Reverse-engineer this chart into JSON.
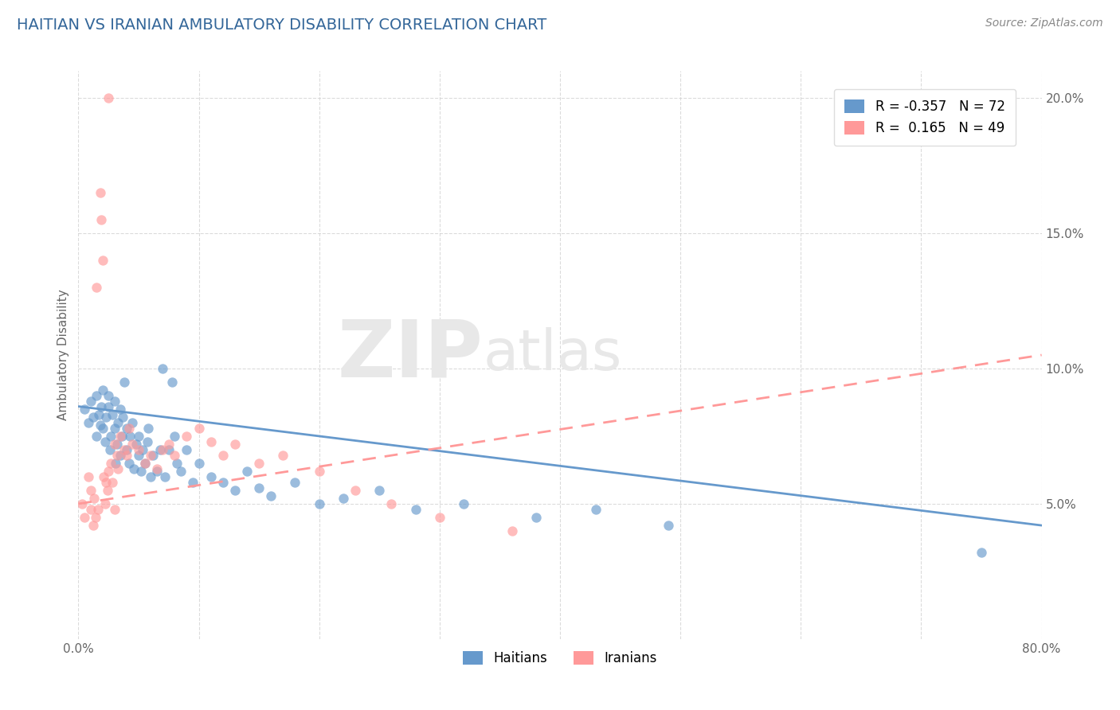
{
  "title": "HAITIAN VS IRANIAN AMBULATORY DISABILITY CORRELATION CHART",
  "source": "Source: ZipAtlas.com",
  "ylabel": "Ambulatory Disability",
  "x_min": 0.0,
  "x_max": 0.8,
  "y_min": 0.0,
  "y_max": 0.21,
  "x_ticks": [
    0.0,
    0.1,
    0.2,
    0.3,
    0.4,
    0.5,
    0.6,
    0.7,
    0.8
  ],
  "x_tick_labels": [
    "0.0%",
    "",
    "",
    "",
    "",
    "",
    "",
    "",
    "80.0%"
  ],
  "y_ticks": [
    0.05,
    0.1,
    0.15,
    0.2
  ],
  "y_tick_labels": [
    "5.0%",
    "10.0%",
    "15.0%",
    "20.0%"
  ],
  "haitian_color": "#6699CC",
  "iranian_color": "#FF9999",
  "haitian_label": "Haitians",
  "iranian_label": "Iranians",
  "legend_r_haitian": "-0.357",
  "legend_n_haitian": "72",
  "legend_r_iranian": "0.165",
  "legend_n_iranian": "49",
  "watermark_zip": "ZIP",
  "watermark_atlas": "atlas",
  "haitian_scatter_x": [
    0.005,
    0.008,
    0.01,
    0.012,
    0.015,
    0.015,
    0.017,
    0.018,
    0.019,
    0.02,
    0.02,
    0.022,
    0.023,
    0.025,
    0.025,
    0.026,
    0.027,
    0.028,
    0.03,
    0.03,
    0.031,
    0.032,
    0.033,
    0.035,
    0.035,
    0.036,
    0.037,
    0.038,
    0.04,
    0.04,
    0.042,
    0.043,
    0.045,
    0.046,
    0.048,
    0.05,
    0.05,
    0.052,
    0.053,
    0.055,
    0.057,
    0.058,
    0.06,
    0.062,
    0.065,
    0.068,
    0.07,
    0.072,
    0.075,
    0.078,
    0.08,
    0.082,
    0.085,
    0.09,
    0.095,
    0.1,
    0.11,
    0.12,
    0.13,
    0.14,
    0.15,
    0.16,
    0.18,
    0.2,
    0.22,
    0.25,
    0.28,
    0.32,
    0.38,
    0.43,
    0.49,
    0.75
  ],
  "haitian_scatter_y": [
    0.085,
    0.08,
    0.088,
    0.082,
    0.075,
    0.09,
    0.083,
    0.079,
    0.086,
    0.078,
    0.092,
    0.073,
    0.082,
    0.086,
    0.09,
    0.07,
    0.075,
    0.083,
    0.078,
    0.088,
    0.065,
    0.072,
    0.08,
    0.085,
    0.068,
    0.075,
    0.082,
    0.095,
    0.07,
    0.078,
    0.065,
    0.075,
    0.08,
    0.063,
    0.072,
    0.068,
    0.075,
    0.062,
    0.07,
    0.065,
    0.073,
    0.078,
    0.06,
    0.068,
    0.062,
    0.07,
    0.1,
    0.06,
    0.07,
    0.095,
    0.075,
    0.065,
    0.062,
    0.07,
    0.058,
    0.065,
    0.06,
    0.058,
    0.055,
    0.062,
    0.056,
    0.053,
    0.058,
    0.05,
    0.052,
    0.055,
    0.048,
    0.05,
    0.045,
    0.048,
    0.042,
    0.032
  ],
  "iranian_scatter_x": [
    0.003,
    0.005,
    0.008,
    0.01,
    0.01,
    0.012,
    0.013,
    0.014,
    0.015,
    0.016,
    0.018,
    0.019,
    0.02,
    0.021,
    0.022,
    0.023,
    0.024,
    0.025,
    0.025,
    0.027,
    0.028,
    0.03,
    0.03,
    0.032,
    0.033,
    0.035,
    0.038,
    0.04,
    0.042,
    0.045,
    0.05,
    0.055,
    0.06,
    0.065,
    0.07,
    0.075,
    0.08,
    0.09,
    0.1,
    0.11,
    0.12,
    0.13,
    0.15,
    0.17,
    0.2,
    0.23,
    0.26,
    0.3,
    0.36
  ],
  "iranian_scatter_y": [
    0.05,
    0.045,
    0.06,
    0.055,
    0.048,
    0.042,
    0.052,
    0.045,
    0.13,
    0.048,
    0.165,
    0.155,
    0.14,
    0.06,
    0.05,
    0.058,
    0.055,
    0.062,
    0.2,
    0.065,
    0.058,
    0.048,
    0.072,
    0.068,
    0.063,
    0.075,
    0.07,
    0.068,
    0.078,
    0.072,
    0.07,
    0.065,
    0.068,
    0.063,
    0.07,
    0.072,
    0.068,
    0.075,
    0.078,
    0.073,
    0.068,
    0.072,
    0.065,
    0.068,
    0.062,
    0.055,
    0.05,
    0.045,
    0.04
  ],
  "haitian_line_x": [
    0.0,
    0.8
  ],
  "haitian_line_y_start": 0.086,
  "haitian_line_y_end": 0.042,
  "iranian_line_x": [
    0.0,
    0.8
  ],
  "iranian_line_y_start": 0.05,
  "iranian_line_y_end": 0.105,
  "grid_color": "#CCCCCC",
  "title_color": "#336699",
  "source_color": "#888888",
  "background_color": "#FFFFFF"
}
